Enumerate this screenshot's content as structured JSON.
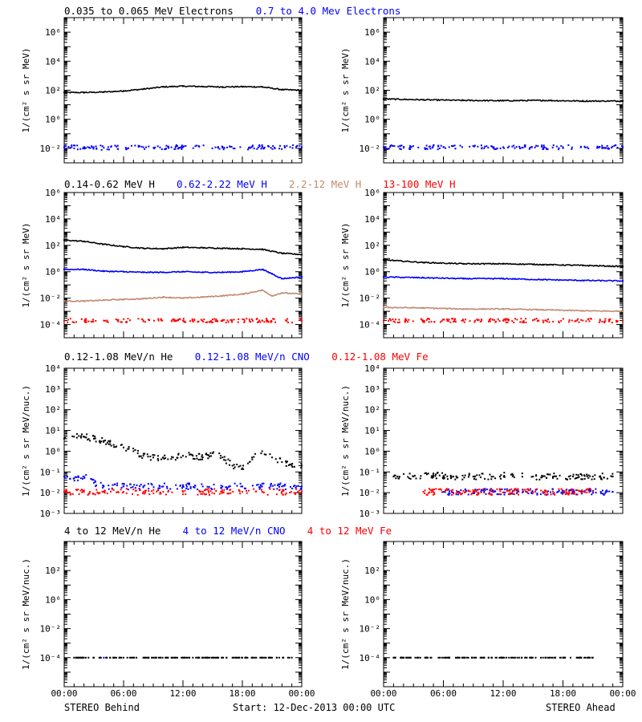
{
  "colors": {
    "black": "#000000",
    "blue": "#0000ff",
    "tan": "#c08a70",
    "red": "#ff0000"
  },
  "footer": {
    "left": "STEREO Behind",
    "center": "Start: 12-Dec-2013 00:00 UTC",
    "right": "STEREO Ahead"
  },
  "xticks": [
    "00:00",
    "06:00",
    "12:00",
    "18:00",
    "00:00"
  ],
  "chart_data": [
    {
      "type": "scatter",
      "name": "electrons-behind",
      "row": 0,
      "col": 0,
      "ylabel": "1/(cm² s sr MeV)",
      "yscale": "log",
      "ylim_exp": [
        -3,
        7
      ],
      "ytick_exps": [
        -2,
        0,
        2,
        4,
        6
      ],
      "x_unit": "hours",
      "series": [
        {
          "name": "0.035 to 0.065 MeV Electrons",
          "color": "#000000",
          "style": "line",
          "x": [
            0,
            2,
            4,
            6,
            8,
            10,
            12,
            14,
            16,
            18,
            20,
            22,
            24
          ],
          "y": [
            70,
            70,
            75,
            90,
            120,
            170,
            190,
            180,
            170,
            175,
            170,
            110,
            100
          ]
        },
        {
          "name": "0.7 to 4.0 Mev Electrons",
          "color": "#0000ff",
          "style": "points",
          "x": [
            0,
            4,
            8,
            12,
            16,
            20,
            24
          ],
          "y": [
            0.012,
            0.011,
            0.012,
            0.012,
            0.011,
            0.012,
            0.012
          ]
        }
      ]
    },
    {
      "type": "scatter",
      "name": "electrons-ahead",
      "row": 0,
      "col": 1,
      "ylabel": "1/(cm² s sr MeV)",
      "yscale": "log",
      "ylim_exp": [
        -3,
        7
      ],
      "ytick_exps": [
        -2,
        0,
        2,
        4,
        6
      ],
      "x_unit": "hours",
      "series": [
        {
          "color": "#000000",
          "style": "line",
          "x": [
            0,
            4,
            8,
            12,
            16,
            20,
            24
          ],
          "y": [
            25,
            22,
            20,
            19,
            20,
            18,
            18
          ]
        },
        {
          "color": "#0000ff",
          "style": "points",
          "x": [
            0,
            6,
            12,
            18,
            24
          ],
          "y": [
            0.012,
            0.012,
            0.012,
            0.012,
            0.012
          ]
        }
      ]
    },
    {
      "type": "scatter",
      "name": "protons-behind",
      "row": 1,
      "col": 0,
      "ylabel": "1/(cm² s sr MeV)",
      "yscale": "log",
      "ylim_exp": [
        -5,
        6
      ],
      "ytick_exps": [
        -4,
        -2,
        0,
        2,
        4,
        6
      ],
      "x_unit": "hours",
      "series": [
        {
          "name": "0.14-0.62 MeV H",
          "color": "#000000",
          "style": "line",
          "x": [
            0,
            2,
            4,
            6,
            8,
            10,
            12,
            14,
            16,
            18,
            20,
            22,
            24
          ],
          "y": [
            250,
            200,
            120,
            80,
            60,
            55,
            70,
            65,
            60,
            55,
            50,
            25,
            20
          ]
        },
        {
          "name": "0.62-2.22 MeV H",
          "color": "#0000ff",
          "style": "line",
          "x": [
            0,
            2,
            4,
            6,
            8,
            10,
            12,
            14,
            16,
            18,
            20,
            21,
            22,
            24
          ],
          "y": [
            1.5,
            1.5,
            1.1,
            1.0,
            0.9,
            0.9,
            1.0,
            0.9,
            0.9,
            1.0,
            1.5,
            0.7,
            0.3,
            0.4
          ]
        },
        {
          "name": "2.2-12 MeV H",
          "color": "#c08a70",
          "style": "line",
          "x": [
            0,
            2,
            4,
            6,
            8,
            10,
            12,
            14,
            16,
            18,
            20,
            21,
            22,
            24
          ],
          "y": [
            0.006,
            0.006,
            0.007,
            0.008,
            0.009,
            0.012,
            0.01,
            0.012,
            0.015,
            0.02,
            0.04,
            0.015,
            0.025,
            0.02
          ]
        },
        {
          "name": "13-100 MeV H",
          "color": "#ff0000",
          "style": "points",
          "x": [
            0,
            4,
            8,
            12,
            16,
            20,
            24
          ],
          "y": [
            0.0002,
            0.0002,
            0.0002,
            0.0002,
            0.0002,
            0.0002,
            0.0002
          ]
        }
      ]
    },
    {
      "type": "scatter",
      "name": "protons-ahead",
      "row": 1,
      "col": 1,
      "ylabel": "1/(cm² s sr MeV)",
      "yscale": "log",
      "ylim_exp": [
        -5,
        6
      ],
      "ytick_exps": [
        -4,
        -2,
        0,
        2,
        4,
        6
      ],
      "x_unit": "hours",
      "series": [
        {
          "color": "#000000",
          "style": "line",
          "x": [
            0,
            4,
            8,
            12,
            16,
            20,
            24
          ],
          "y": [
            8,
            5,
            4,
            4,
            3.5,
            3,
            2.5
          ]
        },
        {
          "color": "#0000ff",
          "style": "line",
          "x": [
            0,
            4,
            8,
            12,
            16,
            20,
            24
          ],
          "y": [
            0.4,
            0.35,
            0.3,
            0.3,
            0.25,
            0.22,
            0.2
          ]
        },
        {
          "color": "#c08a70",
          "style": "line",
          "x": [
            0,
            4,
            8,
            12,
            16,
            20,
            24
          ],
          "y": [
            0.002,
            0.0018,
            0.0015,
            0.0015,
            0.0013,
            0.0011,
            0.001
          ]
        },
        {
          "color": "#ff0000",
          "style": "points",
          "x": [
            0,
            4,
            8,
            12,
            16,
            20,
            24
          ],
          "y": [
            0.0002,
            0.0002,
            0.0002,
            0.0002,
            0.0002,
            0.0002,
            0.0002
          ]
        }
      ]
    },
    {
      "type": "scatter",
      "name": "heavy-low-behind",
      "row": 2,
      "col": 0,
      "ylabel": "1/(cm² s sr MeV/nuc.)",
      "yscale": "log",
      "ylim_exp": [
        -3,
        4
      ],
      "ytick_exps": [
        -3,
        -2,
        -1,
        0,
        1,
        2,
        3,
        4
      ],
      "x_unit": "hours",
      "series": [
        {
          "name": "0.12-1.08 MeV/n He",
          "color": "#000000",
          "style": "points",
          "x": [
            0,
            1,
            2,
            3,
            4,
            5,
            6,
            7,
            8,
            9,
            10,
            11,
            12,
            13,
            14,
            15,
            16,
            17,
            18,
            19,
            20,
            21,
            22,
            23,
            24
          ],
          "y": [
            4,
            5,
            5,
            4,
            3,
            2,
            1.5,
            1,
            0.6,
            0.5,
            0.5,
            0.5,
            0.6,
            0.6,
            0.5,
            0.8,
            0.5,
            0.2,
            0.15,
            0.4,
            1,
            0.5,
            0.3,
            0.2,
            0.2
          ]
        },
        {
          "name": "0.12-1.08 MeV/n CNO",
          "color": "#0000ff",
          "style": "points",
          "x": [
            0,
            1,
            2,
            3,
            4,
            6,
            8,
            10,
            12,
            14,
            16,
            18,
            20,
            22,
            24
          ],
          "y": [
            0.06,
            0.05,
            0.06,
            0.03,
            0.02,
            0.02,
            0.02,
            0.02,
            0.02,
            0.02,
            0.02,
            0.02,
            0.02,
            0.02,
            0.02
          ]
        },
        {
          "name": "0.12-1.08 MeV Fe",
          "color": "#ff0000",
          "style": "points",
          "x": [
            0,
            2,
            4,
            6,
            8,
            10,
            12,
            14,
            16,
            18,
            20,
            22,
            24
          ],
          "y": [
            0.011,
            0.011,
            0.011,
            0.011,
            0.011,
            0.011,
            0.011,
            0.011,
            0.011,
            0.011,
            0.011,
            0.011,
            0.011
          ]
        }
      ]
    },
    {
      "type": "scatter",
      "name": "heavy-low-ahead",
      "row": 2,
      "col": 1,
      "ylabel": "1/(cm² s sr MeV/nuc.)",
      "yscale": "log",
      "ylim_exp": [
        -3,
        4
      ],
      "ytick_exps": [
        -3,
        -2,
        -1,
        0,
        1,
        2,
        3,
        4
      ],
      "x_unit": "hours",
      "series": [
        {
          "color": "#000000",
          "style": "points",
          "x": [
            1,
            3,
            5,
            7,
            9,
            11,
            13,
            15,
            17,
            19,
            21,
            23
          ],
          "y": [
            0.06,
            0.06,
            0.07,
            0.06,
            0.06,
            0.06,
            0.07,
            0.06,
            0.06,
            0.06,
            0.06,
            0.06
          ]
        },
        {
          "color": "#0000ff",
          "style": "points",
          "x": [
            6,
            11,
            14,
            19,
            23
          ],
          "y": [
            0.011,
            0.011,
            0.011,
            0.011,
            0.011
          ]
        },
        {
          "color": "#ff0000",
          "style": "points",
          "x": [
            4,
            9,
            16,
            21
          ],
          "y": [
            0.011,
            0.011,
            0.011,
            0.011
          ]
        }
      ]
    },
    {
      "type": "scatter",
      "name": "heavy-high-behind",
      "row": 3,
      "col": 0,
      "ylabel": "1/(cm² s sr MeV/nuc.)",
      "yscale": "log",
      "ylim_exp": [
        -6,
        4
      ],
      "ytick_exps": [
        -4,
        -2,
        0,
        2
      ],
      "x_unit": "hours",
      "series": [
        {
          "name": "4 to 12 MeV/n He",
          "color": "#000000",
          "style": "points",
          "x": [
            1,
            3,
            5,
            7,
            9,
            11,
            13,
            15,
            17,
            19,
            21,
            23
          ],
          "y": [
            0.0001,
            0.0001,
            0.0001,
            0.0001,
            0.0001,
            0.0001,
            0.0001,
            0.0001,
            0.0001,
            0.0001,
            0.0001,
            0.0001
          ]
        },
        {
          "name": "4 to 12 MeV/n CNO",
          "color": "#0000ff",
          "style": "points",
          "x": [
            4
          ],
          "y": [
            0.0001
          ]
        },
        {
          "name": "4 to 12 MeV Fe",
          "color": "#ff0000",
          "style": "points",
          "x": [],
          "y": []
        }
      ]
    },
    {
      "type": "scatter",
      "name": "heavy-high-ahead",
      "row": 3,
      "col": 1,
      "ylabel": "1/(cm² s sr MeV/nuc.)",
      "yscale": "log",
      "ylim_exp": [
        -6,
        4
      ],
      "ytick_exps": [
        -4,
        -2,
        0,
        2
      ],
      "x_unit": "hours",
      "series": [
        {
          "color": "#000000",
          "style": "points",
          "x": [
            1,
            10,
            13,
            16,
            18,
            21
          ],
          "y": [
            0.0001,
            0.0001,
            0.0001,
            0.0001,
            0.0001,
            0.0001
          ]
        }
      ]
    }
  ]
}
